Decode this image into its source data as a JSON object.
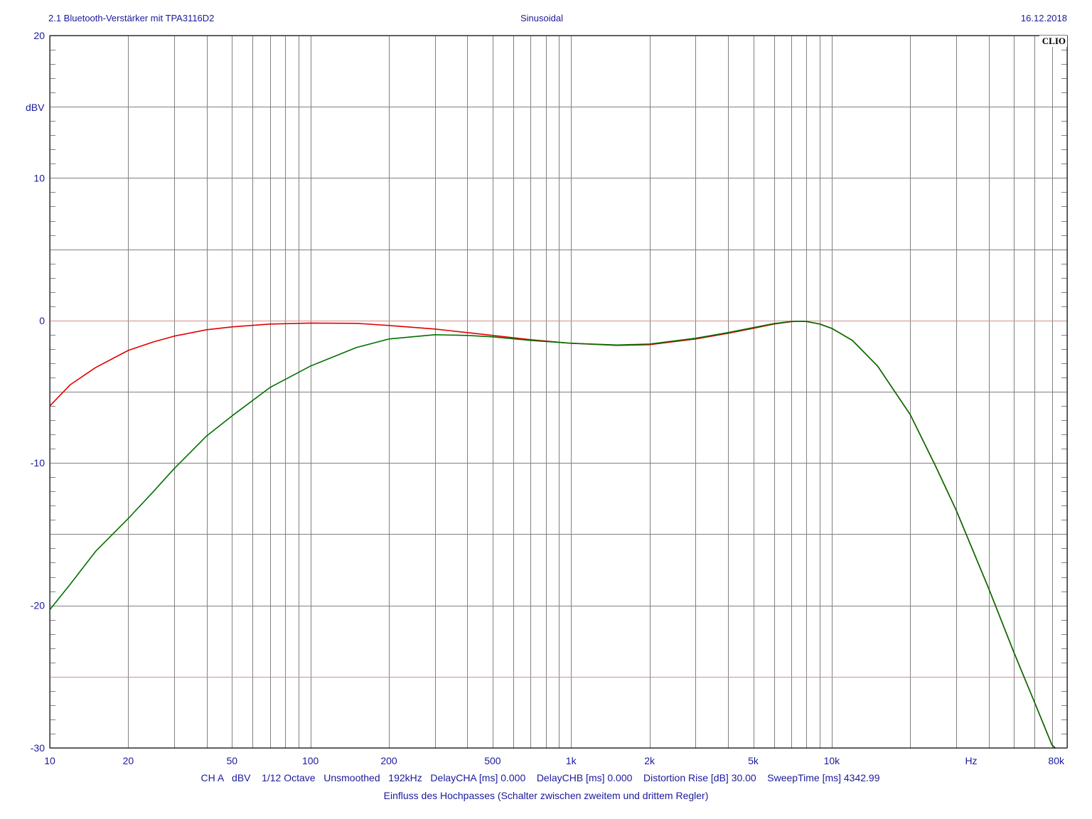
{
  "header": {
    "left": "2.1 Bluetooth-Verstärker mit TPA3116D2",
    "center": "Sinusoidal",
    "right": "16.12.2018",
    "logo": "CLIO"
  },
  "footer": {
    "line1": "CH A   dBV    1/12 Octave   Unsmoothed   192kHz   DelayCHA [ms] 0.000    DelayCHB [ms] 0.000    Distortion Rise [dB] 30.00    SweepTime [ms] 4342.99",
    "line2": "Einfluss des Hochpasses (Schalter zwischen zweitem und drittem Regler)"
  },
  "colors": {
    "text": "#1a1a9c",
    "grid": "#808080",
    "grid_minor": "#b4b4b4",
    "ref_line": "#d09090",
    "series_red": "#e00000",
    "series_green": "#007000"
  },
  "chart_data": {
    "type": "line",
    "xscale": "log",
    "xlim": [
      10,
      80000
    ],
    "ylim": [
      -30,
      20
    ],
    "ylabel": "dBV",
    "xlabel": "Hz",
    "x_ticks": [
      {
        "v": 10,
        "label": "10"
      },
      {
        "v": 20,
        "label": "20"
      },
      {
        "v": 50,
        "label": "50"
      },
      {
        "v": 100,
        "label": "100"
      },
      {
        "v": 200,
        "label": "200"
      },
      {
        "v": 500,
        "label": "500"
      },
      {
        "v": 1000,
        "label": "1k"
      },
      {
        "v": 2000,
        "label": "2k"
      },
      {
        "v": 5000,
        "label": "5k"
      },
      {
        "v": 10000,
        "label": "10k"
      },
      {
        "v": 80000,
        "label": "80k"
      }
    ],
    "y_ticks": [
      {
        "v": 20,
        "label": "20"
      },
      {
        "v": 10,
        "label": "10"
      },
      {
        "v": 0,
        "label": "0"
      },
      {
        "v": -10,
        "label": "-10"
      },
      {
        "v": -20,
        "label": "-20"
      },
      {
        "v": -30,
        "label": "-30"
      }
    ],
    "y_ref_lines": [
      0,
      -25
    ],
    "series": [
      {
        "color": "#e00000",
        "points": [
          [
            10,
            -6.0
          ],
          [
            12,
            -4.5
          ],
          [
            15,
            -3.3
          ],
          [
            20,
            -2.1
          ],
          [
            25,
            -1.5
          ],
          [
            30,
            -1.1
          ],
          [
            40,
            -0.65
          ],
          [
            50,
            -0.45
          ],
          [
            70,
            -0.25
          ],
          [
            100,
            -0.18
          ],
          [
            150,
            -0.2
          ],
          [
            200,
            -0.35
          ],
          [
            300,
            -0.6
          ],
          [
            400,
            -0.85
          ],
          [
            500,
            -1.05
          ],
          [
            700,
            -1.35
          ],
          [
            1000,
            -1.6
          ],
          [
            1500,
            -1.75
          ],
          [
            2000,
            -1.7
          ],
          [
            3000,
            -1.3
          ],
          [
            4000,
            -0.9
          ],
          [
            5000,
            -0.55
          ],
          [
            6000,
            -0.25
          ],
          [
            7000,
            -0.08
          ],
          [
            7500,
            -0.05
          ],
          [
            8000,
            -0.07
          ],
          [
            9000,
            -0.25
          ],
          [
            10000,
            -0.55
          ],
          [
            12000,
            -1.4
          ],
          [
            15000,
            -3.2
          ],
          [
            20000,
            -6.6
          ],
          [
            25000,
            -10.2
          ],
          [
            30000,
            -13.3
          ],
          [
            40000,
            -18.8
          ],
          [
            50000,
            -23.3
          ],
          [
            60000,
            -26.8
          ],
          [
            70000,
            -29.8
          ],
          [
            72000,
            -30.0
          ]
        ]
      },
      {
        "color": "#007000",
        "points": [
          [
            10,
            -20.3
          ],
          [
            12,
            -18.5
          ],
          [
            15,
            -16.2
          ],
          [
            20,
            -13.9
          ],
          [
            25,
            -12.0
          ],
          [
            30,
            -10.4
          ],
          [
            40,
            -8.1
          ],
          [
            50,
            -6.7
          ],
          [
            70,
            -4.7
          ],
          [
            100,
            -3.2
          ],
          [
            150,
            -1.9
          ],
          [
            200,
            -1.3
          ],
          [
            300,
            -1.0
          ],
          [
            400,
            -1.05
          ],
          [
            500,
            -1.15
          ],
          [
            700,
            -1.4
          ],
          [
            1000,
            -1.6
          ],
          [
            1500,
            -1.72
          ],
          [
            2000,
            -1.65
          ],
          [
            3000,
            -1.25
          ],
          [
            4000,
            -0.85
          ],
          [
            5000,
            -0.5
          ],
          [
            6000,
            -0.22
          ],
          [
            7000,
            -0.07
          ],
          [
            7500,
            -0.05
          ],
          [
            8000,
            -0.07
          ],
          [
            9000,
            -0.25
          ],
          [
            10000,
            -0.55
          ],
          [
            12000,
            -1.4
          ],
          [
            15000,
            -3.2
          ],
          [
            20000,
            -6.6
          ],
          [
            25000,
            -10.2
          ],
          [
            30000,
            -13.3
          ],
          [
            40000,
            -18.8
          ],
          [
            50000,
            -23.3
          ],
          [
            60000,
            -26.8
          ],
          [
            70000,
            -29.8
          ],
          [
            72000,
            -30.0
          ]
        ]
      }
    ]
  }
}
